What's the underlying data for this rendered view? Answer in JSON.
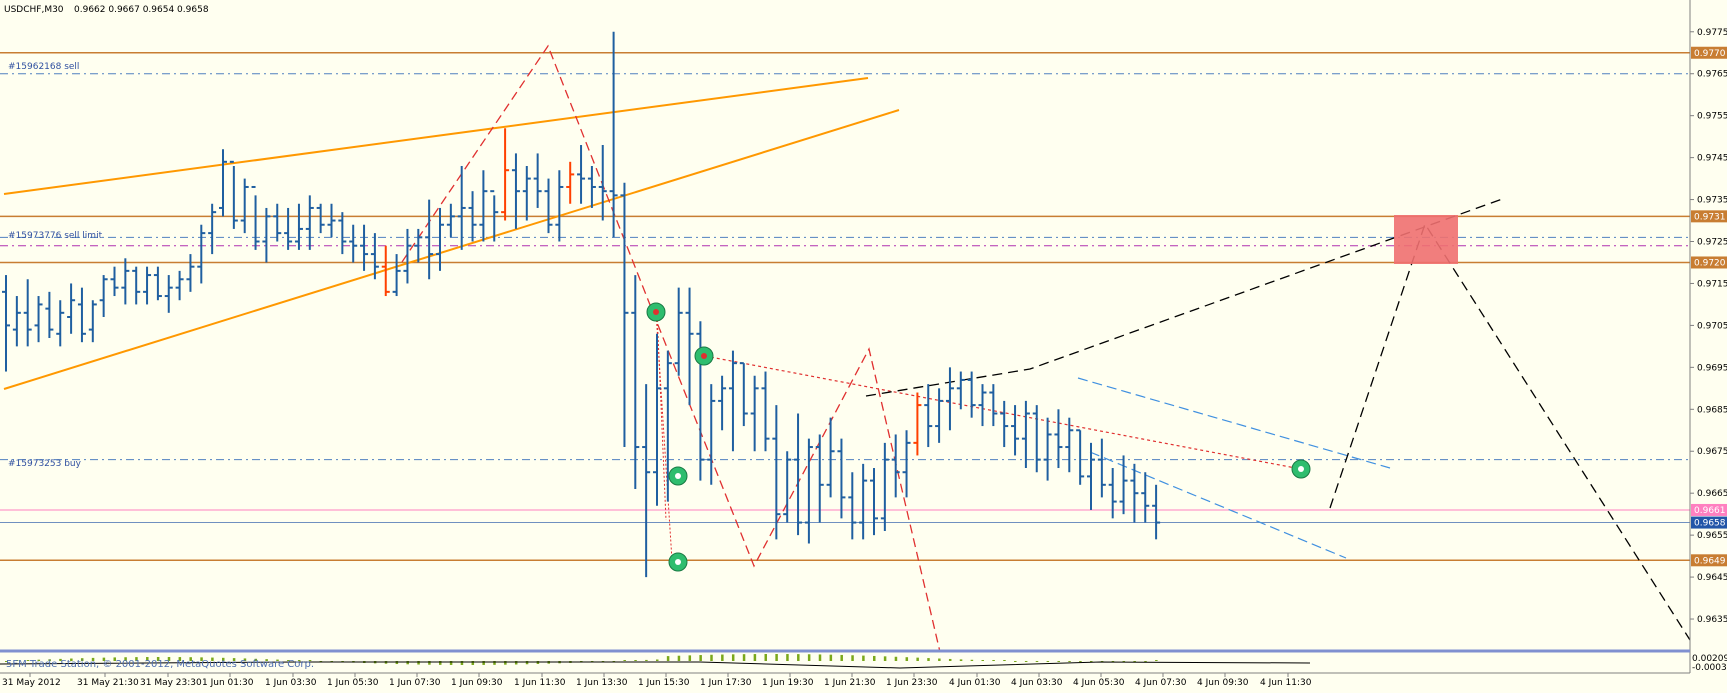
{
  "header": {
    "symbol_tf": "USDCHF,M30",
    "ohlc": "0.9662 0.9667 0.9654 0.9658"
  },
  "footer": {
    "copyright": "5FM Trade Station, © 2001-2012, MetaQuotes Software Corp."
  },
  "order_labels": {
    "sell": "#15962168 sell",
    "sell_limit": "#15973776 sell limit",
    "buy": "#15973253 buy"
  },
  "chart_data": {
    "type": "ohlc",
    "symbol": "USDCHF",
    "timeframe": "M30",
    "ylim": [
      0.9629,
      0.9783
    ],
    "y_ticks": [
      "0.9775",
      "0.9765",
      "0.9755",
      "0.9745",
      "0.9735",
      "0.9725",
      "0.9715",
      "0.9705",
      "0.9695",
      "0.9685",
      "0.9675",
      "0.9665",
      "0.9655",
      "0.9645",
      "0.9635"
    ],
    "x_ticks": [
      "31 May 2012",
      "31 May 21:30",
      "31 May 23:30",
      "1 Jun 01:30",
      "1 Jun 03:30",
      "1 Jun 05:30",
      "1 Jun 07:30",
      "1 Jun 09:30",
      "1 Jun 11:30",
      "1 Jun 13:30",
      "1 Jun 15:30",
      "1 Jun 17:30",
      "1 Jun 19:30",
      "1 Jun 21:30",
      "1 Jun 23:30",
      "4 Jun 01:30",
      "4 Jun 03:30",
      "4 Jun 05:30",
      "4 Jun 07:30",
      "4 Jun 09:30",
      "4 Jun 11:30"
    ],
    "price_tags": [
      {
        "value": "0.9770",
        "price": 0.977,
        "bg": "#c87d32",
        "fg": "#ffffff"
      },
      {
        "value": "0.9731",
        "price": 0.9731,
        "bg": "#c87d32",
        "fg": "#ffffff"
      },
      {
        "value": "0.9720",
        "price": 0.972,
        "bg": "#c87d32",
        "fg": "#ffffff"
      },
      {
        "value": "0.9661",
        "price": 0.9661,
        "bg": "#ff80c0",
        "fg": "#ffffff"
      },
      {
        "value": "0.9658",
        "price": 0.9658,
        "bg": "#2255a8",
        "fg": "#ffffff"
      },
      {
        "value": "0.9649",
        "price": 0.9649,
        "bg": "#c87d32",
        "fg": "#ffffff"
      }
    ],
    "h_lines": [
      {
        "price": 0.977,
        "color": "#c87d32",
        "style": "solid"
      },
      {
        "price": 0.9731,
        "color": "#c87d32",
        "style": "solid"
      },
      {
        "price": 0.972,
        "color": "#c87d32",
        "style": "solid"
      },
      {
        "price": 0.9649,
        "color": "#c87d32",
        "style": "solid"
      },
      {
        "price": 0.9661,
        "color": "#ff80c0",
        "style": "solid"
      },
      {
        "price": 0.9658,
        "color": "#7090c0",
        "style": "solid"
      },
      {
        "price": 0.9765,
        "color": "#5080c0",
        "style": "dashdot"
      },
      {
        "price": 0.9726,
        "color": "#5080c0",
        "style": "dashdot"
      },
      {
        "price": 0.9724,
        "color": "#b030b0",
        "style": "dashdot"
      },
      {
        "price": 0.9673,
        "color": "#5080c0",
        "style": "dashdot"
      }
    ],
    "bars": [
      [
        0.9713,
        0.9717,
        0.9694,
        0.9705
      ],
      [
        0.9704,
        0.9712,
        0.97,
        0.9708
      ],
      [
        0.9708,
        0.9716,
        0.97,
        0.9704
      ],
      [
        0.9705,
        0.9712,
        0.9701,
        0.971
      ],
      [
        0.9709,
        0.9713,
        0.9702,
        0.9704
      ],
      [
        0.9703,
        0.9711,
        0.97,
        0.9708
      ],
      [
        0.9707,
        0.9715,
        0.9703,
        0.9711
      ],
      [
        0.971,
        0.9714,
        0.9701,
        0.9703
      ],
      [
        0.9704,
        0.9711,
        0.9701,
        0.971
      ],
      [
        0.9711,
        0.9717,
        0.9707,
        0.9716
      ],
      [
        0.9716,
        0.9719,
        0.9712,
        0.9714
      ],
      [
        0.9714,
        0.9721,
        0.971,
        0.9718
      ],
      [
        0.9718,
        0.9719,
        0.971,
        0.9713
      ],
      [
        0.9713,
        0.9719,
        0.971,
        0.9717
      ],
      [
        0.9717,
        0.9719,
        0.9711,
        0.9712
      ],
      [
        0.9712,
        0.9717,
        0.9708,
        0.9714
      ],
      [
        0.9714,
        0.9718,
        0.9711,
        0.9716
      ],
      [
        0.9716,
        0.9722,
        0.9713,
        0.9719
      ],
      [
        0.9719,
        0.9729,
        0.9715,
        0.9727
      ],
      [
        0.9727,
        0.9734,
        0.9722,
        0.9732
      ],
      [
        0.9733,
        0.9747,
        0.9731,
        0.9744
      ],
      [
        0.9744,
        0.9743,
        0.9728,
        0.973
      ],
      [
        0.973,
        0.974,
        0.9727,
        0.9738
      ],
      [
        0.9738,
        0.9736,
        0.9723,
        0.9725
      ],
      [
        0.9725,
        0.9733,
        0.972,
        0.9731
      ],
      [
        0.9731,
        0.9734,
        0.9725,
        0.9727
      ],
      [
        0.9727,
        0.9733,
        0.9723,
        0.9725
      ],
      [
        0.9725,
        0.9734,
        0.9723,
        0.9728
      ],
      [
        0.9728,
        0.9736,
        0.9723,
        0.9733
      ],
      [
        0.9733,
        0.9734,
        0.9727,
        0.9729
      ],
      [
        0.9729,
        0.9734,
        0.9726,
        0.973
      ],
      [
        0.973,
        0.9732,
        0.9722,
        0.9725
      ],
      [
        0.9725,
        0.9729,
        0.972,
        0.9724
      ],
      [
        0.9724,
        0.9729,
        0.9718,
        0.9722
      ],
      [
        0.9722,
        0.9727,
        0.9716,
        0.9719
      ],
      [
        0.9719,
        0.9724,
        0.9712,
        0.9713
      ],
      [
        0.9713,
        0.9722,
        0.9712,
        0.9718
      ],
      [
        0.9718,
        0.9728,
        0.9715,
        0.9724
      ],
      [
        0.9724,
        0.9728,
        0.972,
        0.9726
      ],
      [
        0.9726,
        0.9735,
        0.9716,
        0.9722
      ],
      [
        0.9722,
        0.9733,
        0.9718,
        0.9729
      ],
      [
        0.9729,
        0.9734,
        0.9726,
        0.9731
      ],
      [
        0.9731,
        0.9743,
        0.9723,
        0.9733
      ],
      [
        0.9733,
        0.9737,
        0.9725,
        0.9729
      ],
      [
        0.9729,
        0.9742,
        0.9725,
        0.9737
      ],
      [
        0.9737,
        0.9736,
        0.9725,
        0.9732
      ],
      [
        0.9732,
        0.9752,
        0.973,
        0.9742
      ],
      [
        0.9742,
        0.9746,
        0.9728,
        0.9737
      ],
      [
        0.9737,
        0.9743,
        0.973,
        0.974
      ],
      [
        0.974,
        0.9746,
        0.9733,
        0.9737
      ],
      [
        0.9737,
        0.974,
        0.9727,
        0.9729
      ],
      [
        0.9729,
        0.9742,
        0.9725,
        0.9738
      ],
      [
        0.9738,
        0.9744,
        0.9734,
        0.9741
      ],
      [
        0.9741,
        0.9748,
        0.9734,
        0.974
      ],
      [
        0.974,
        0.9743,
        0.9733,
        0.9738
      ],
      [
        0.9738,
        0.9748,
        0.973,
        0.9737
      ],
      [
        0.9737,
        0.9775,
        0.9726,
        0.9736
      ],
      [
        0.9736,
        0.9739,
        0.9676,
        0.9708
      ],
      [
        0.9708,
        0.9717,
        0.9666,
        0.9676
      ],
      [
        0.9676,
        0.9691,
        0.9645,
        0.967
      ],
      [
        0.967,
        0.9703,
        0.9662,
        0.969
      ],
      [
        0.969,
        0.9699,
        0.9663,
        0.9696
      ],
      [
        0.9696,
        0.9714,
        0.9693,
        0.9708
      ],
      [
        0.9708,
        0.9714,
        0.9686,
        0.9703
      ],
      [
        0.9703,
        0.9706,
        0.9668,
        0.9673
      ],
      [
        0.9673,
        0.9691,
        0.9667,
        0.9687
      ],
      [
        0.9687,
        0.9693,
        0.968,
        0.969
      ],
      [
        0.969,
        0.9699,
        0.9675,
        0.9696
      ],
      [
        0.9696,
        0.9696,
        0.9681,
        0.9684
      ],
      [
        0.9684,
        0.9693,
        0.9675,
        0.969
      ],
      [
        0.969,
        0.9694,
        0.9675,
        0.9678
      ],
      [
        0.9678,
        0.9686,
        0.9654,
        0.966
      ],
      [
        0.966,
        0.9675,
        0.9658,
        0.9673
      ],
      [
        0.9673,
        0.9684,
        0.9655,
        0.9658
      ],
      [
        0.9658,
        0.9678,
        0.9653,
        0.9676
      ],
      [
        0.9676,
        0.9679,
        0.9658,
        0.9667
      ],
      [
        0.9667,
        0.9683,
        0.9664,
        0.9675
      ],
      [
        0.9675,
        0.9678,
        0.9659,
        0.9664
      ],
      [
        0.9664,
        0.967,
        0.9654,
        0.9658
      ],
      [
        0.9658,
        0.9672,
        0.9654,
        0.9668
      ],
      [
        0.9668,
        0.9671,
        0.9655,
        0.9659
      ],
      [
        0.9659,
        0.9677,
        0.9656,
        0.9673
      ],
      [
        0.9673,
        0.9679,
        0.9664,
        0.967
      ],
      [
        0.967,
        0.968,
        0.9664,
        0.9677
      ],
      [
        0.9677,
        0.9689,
        0.9674,
        0.9686
      ],
      [
        0.9686,
        0.9691,
        0.9676,
        0.9681
      ],
      [
        0.9681,
        0.969,
        0.9677,
        0.9687
      ],
      [
        0.9687,
        0.9695,
        0.968,
        0.969
      ],
      [
        0.969,
        0.9694,
        0.9685,
        0.9692
      ],
      [
        0.9692,
        0.9694,
        0.9683,
        0.9686
      ],
      [
        0.9686,
        0.9691,
        0.9681,
        0.9689
      ],
      [
        0.9689,
        0.9691,
        0.9681,
        0.9684
      ],
      [
        0.9684,
        0.9687,
        0.9676,
        0.9681
      ],
      [
        0.9681,
        0.9686,
        0.9674,
        0.9678
      ],
      [
        0.9678,
        0.9687,
        0.9671,
        0.9684
      ],
      [
        0.9684,
        0.9686,
        0.967,
        0.9673
      ],
      [
        0.9673,
        0.9683,
        0.9668,
        0.9679
      ],
      [
        0.9679,
        0.9685,
        0.9671,
        0.9676
      ],
      [
        0.9676,
        0.9683,
        0.967,
        0.968
      ],
      [
        0.968,
        0.968,
        0.9667,
        0.9669
      ],
      [
        0.9669,
        0.9677,
        0.9661,
        0.9673
      ],
      [
        0.9673,
        0.9678,
        0.9664,
        0.9667
      ],
      [
        0.9667,
        0.9671,
        0.9659,
        0.9663
      ],
      [
        0.9663,
        0.9674,
        0.966,
        0.9668
      ],
      [
        0.9668,
        0.9672,
        0.9658,
        0.9665
      ],
      [
        0.9665,
        0.967,
        0.9658,
        0.9662
      ],
      [
        0.9662,
        0.9667,
        0.9654,
        0.9658
      ]
    ],
    "indicator": {
      "name": "",
      "values": [
        "0.00209",
        "-0.00033"
      ]
    }
  }
}
